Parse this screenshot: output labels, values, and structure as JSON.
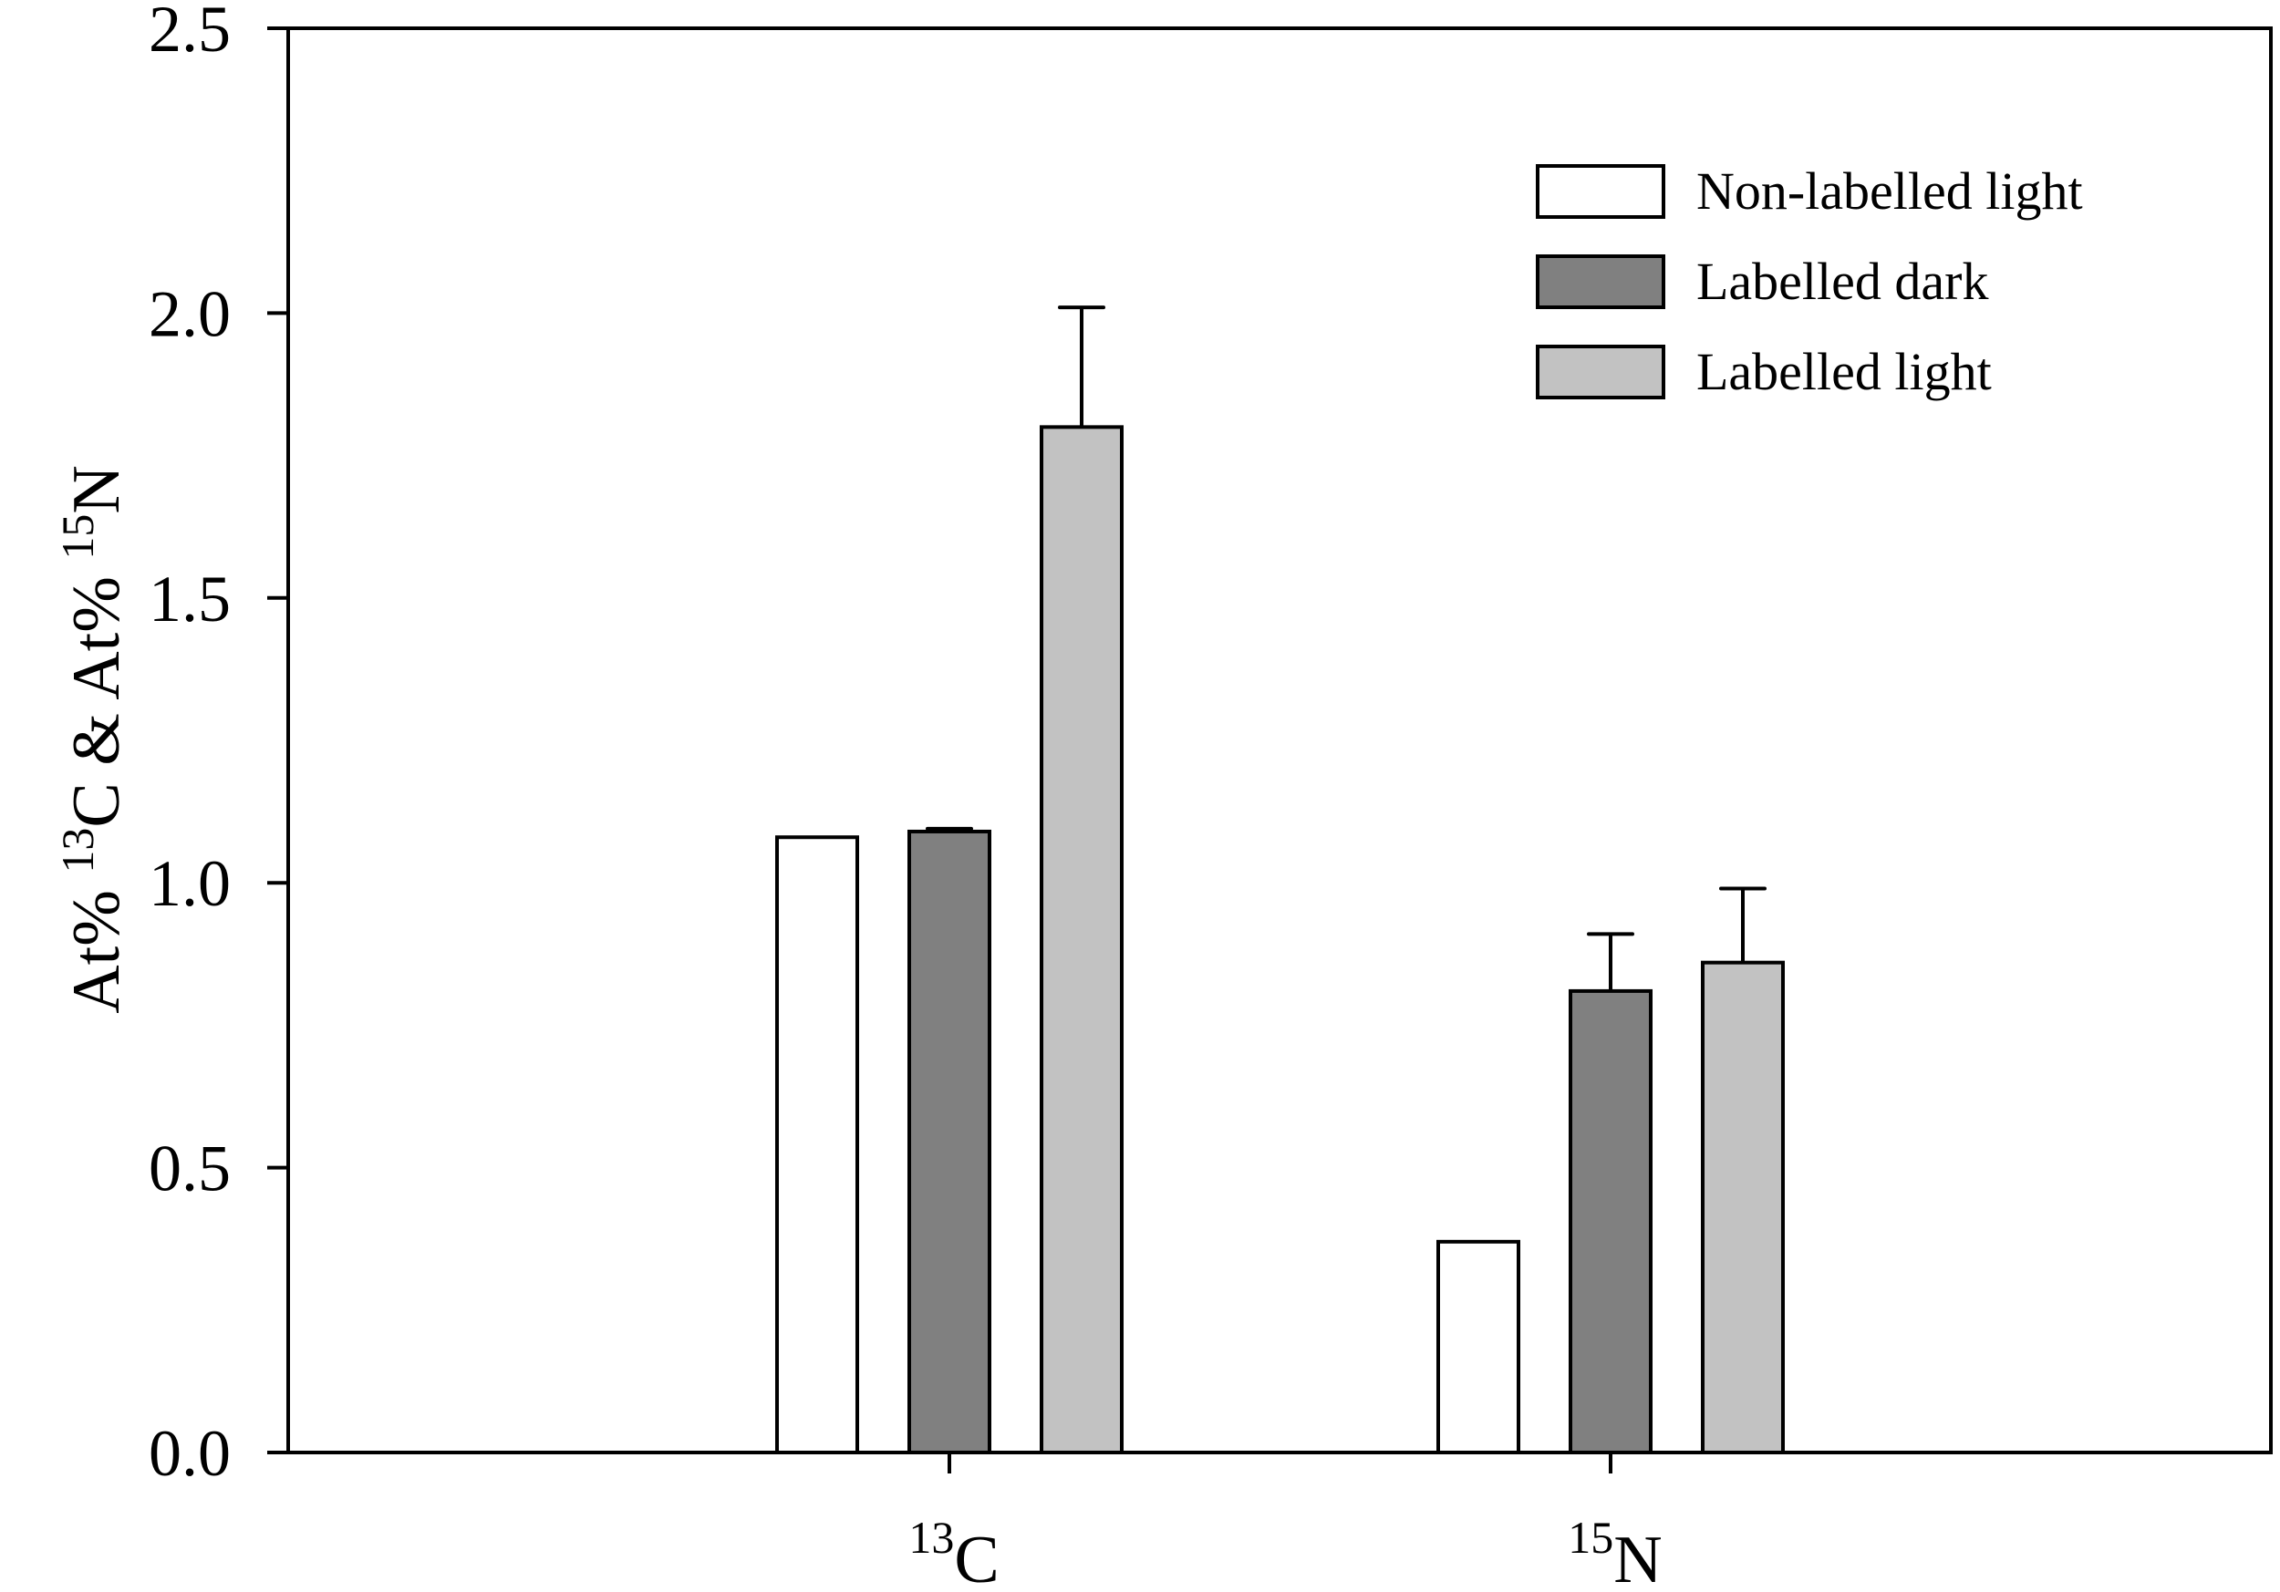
{
  "chart_data": {
    "type": "bar",
    "title": "",
    "xlabel": "",
    "ylabel": "At% 13C & At% 15N",
    "ylabel_parts": [
      {
        "text": "At% ",
        "sup": false
      },
      {
        "text": "13",
        "sup": true
      },
      {
        "text": "C & At% ",
        "sup": false
      },
      {
        "text": "15",
        "sup": true
      },
      {
        "text": "N",
        "sup": false
      }
    ],
    "ylim": [
      0,
      2.5
    ],
    "yticks": [
      0.0,
      0.5,
      1.0,
      1.5,
      2.0,
      2.5
    ],
    "ytick_labels": [
      "0.0",
      "0.5",
      "1.0",
      "1.5",
      "2.0",
      "2.5"
    ],
    "grid": false,
    "legend_position": "upper right",
    "categories": [
      "13C",
      "15N"
    ],
    "category_labels": [
      {
        "sup": "13",
        "base": "C"
      },
      {
        "sup": "15",
        "base": "N"
      }
    ],
    "series": [
      {
        "name": "Non-labelled light",
        "color": "#ffffff",
        "values": [
          1.08,
          0.37
        ],
        "errors": [
          0.0,
          0.0
        ]
      },
      {
        "name": "Labelled dark",
        "color": "#808080",
        "values": [
          1.09,
          0.81
        ],
        "errors": [
          0.005,
          0.1
        ]
      },
      {
        "name": "Labelled light",
        "color": "#c2c2c2",
        "values": [
          1.8,
          0.86
        ],
        "errors": [
          0.21,
          0.13
        ]
      }
    ]
  },
  "legend": {
    "items": [
      {
        "label": "Non-labelled light",
        "color": "#ffffff"
      },
      {
        "label": "Labelled dark",
        "color": "#808080"
      },
      {
        "label": "Labelled light",
        "color": "#c2c2c2"
      }
    ]
  }
}
